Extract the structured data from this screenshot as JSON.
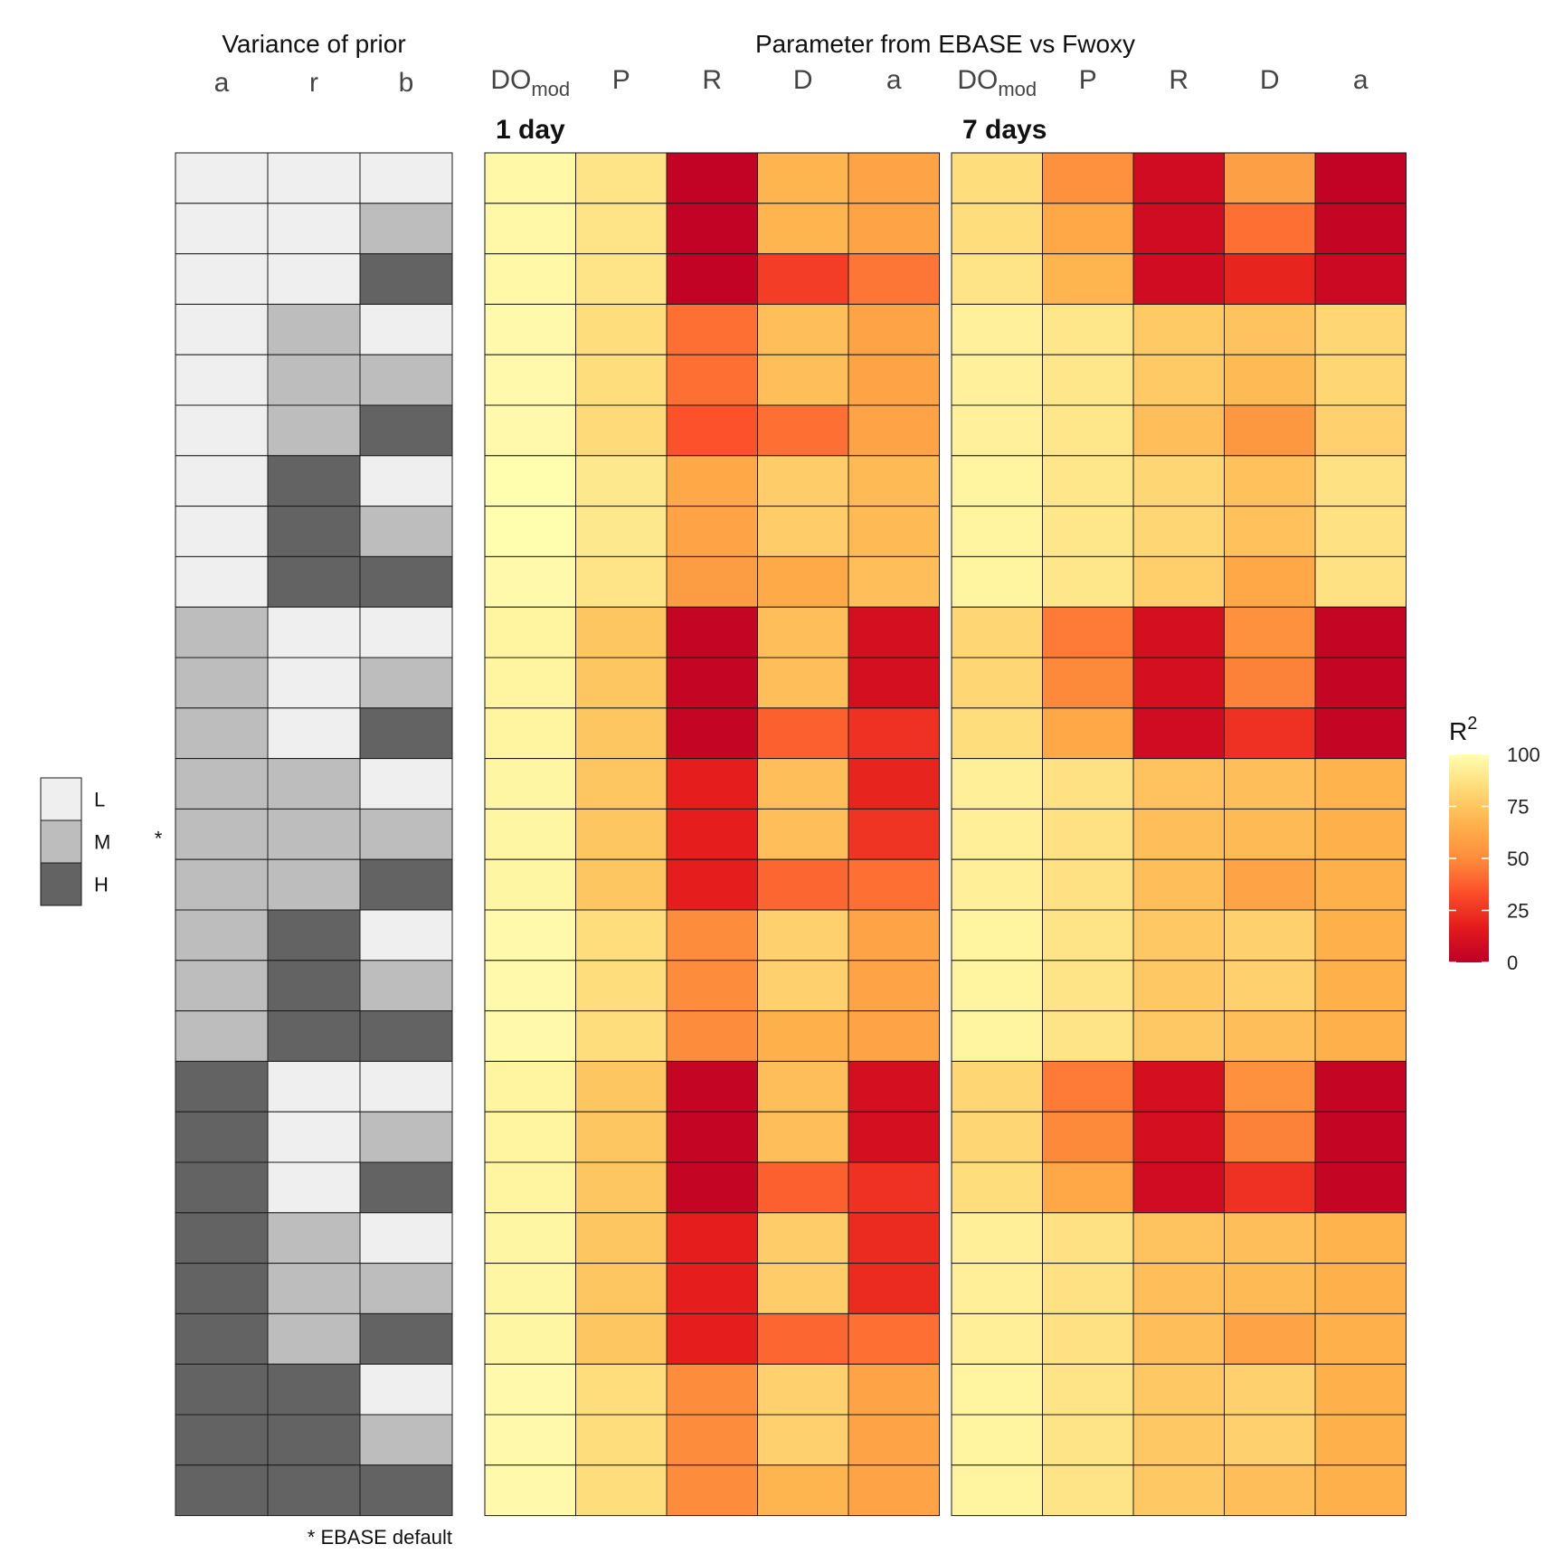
{
  "chart_data": {
    "type": "heatmap",
    "titles": {
      "prior_group": "Variance of prior",
      "param_group": "Parameter from EBASE vs Fwoxy"
    },
    "prior_columns": [
      "a",
      "r",
      "b"
    ],
    "param_columns": [
      {
        "main": "DO",
        "sub": "mod"
      },
      {
        "main": "P",
        "sub": ""
      },
      {
        "main": "R",
        "sub": ""
      },
      {
        "main": "D",
        "sub": ""
      },
      {
        "main": "a",
        "sub": ""
      }
    ],
    "prior_levels": [
      {
        "key": "L",
        "label": "L",
        "color": "#efefef"
      },
      {
        "key": "M",
        "label": "M",
        "color": "#bdbdbd"
      },
      {
        "key": "H",
        "label": "H",
        "color": "#636363"
      }
    ],
    "default_marker": "*",
    "default_row_index": 13,
    "footnote": "* EBASE default",
    "prior_grid": [
      [
        "L",
        "L",
        "L"
      ],
      [
        "L",
        "L",
        "M"
      ],
      [
        "L",
        "L",
        "H"
      ],
      [
        "L",
        "M",
        "L"
      ],
      [
        "L",
        "M",
        "M"
      ],
      [
        "L",
        "M",
        "H"
      ],
      [
        "L",
        "H",
        "L"
      ],
      [
        "L",
        "H",
        "M"
      ],
      [
        "L",
        "H",
        "H"
      ],
      [
        "M",
        "L",
        "L"
      ],
      [
        "M",
        "L",
        "M"
      ],
      [
        "M",
        "L",
        "H"
      ],
      [
        "M",
        "M",
        "L"
      ],
      [
        "M",
        "M",
        "M"
      ],
      [
        "M",
        "M",
        "H"
      ],
      [
        "M",
        "H",
        "L"
      ],
      [
        "M",
        "H",
        "M"
      ],
      [
        "M",
        "H",
        "H"
      ],
      [
        "H",
        "L",
        "L"
      ],
      [
        "H",
        "L",
        "M"
      ],
      [
        "H",
        "L",
        "H"
      ],
      [
        "H",
        "M",
        "L"
      ],
      [
        "H",
        "M",
        "M"
      ],
      [
        "H",
        "M",
        "H"
      ],
      [
        "H",
        "H",
        "L"
      ],
      [
        "H",
        "H",
        "M"
      ],
      [
        "H",
        "H",
        "H"
      ]
    ],
    "panels": [
      {
        "title": "1 day",
        "values": [
          [
            97,
            88,
            2,
            68,
            60
          ],
          [
            97,
            88,
            2,
            68,
            60
          ],
          [
            97,
            88,
            2,
            28,
            44
          ],
          [
            98,
            85,
            42,
            72,
            60
          ],
          [
            98,
            85,
            42,
            72,
            60
          ],
          [
            98,
            84,
            34,
            42,
            60
          ],
          [
            99,
            90,
            62,
            78,
            70
          ],
          [
            99,
            90,
            60,
            78,
            70
          ],
          [
            98,
            88,
            57,
            63,
            72
          ],
          [
            95,
            75,
            3,
            72,
            10
          ],
          [
            95,
            75,
            3,
            72,
            10
          ],
          [
            95,
            75,
            3,
            38,
            24
          ],
          [
            96,
            75,
            18,
            72,
            20
          ],
          [
            96,
            75,
            18,
            72,
            25
          ],
          [
            96,
            75,
            18,
            40,
            42
          ],
          [
            98,
            85,
            50,
            80,
            60
          ],
          [
            98,
            85,
            50,
            80,
            60
          ],
          [
            98,
            85,
            50,
            66,
            60
          ],
          [
            95,
            75,
            3,
            72,
            10
          ],
          [
            95,
            75,
            3,
            72,
            10
          ],
          [
            95,
            75,
            3,
            38,
            24
          ],
          [
            96,
            75,
            18,
            78,
            22
          ],
          [
            96,
            75,
            18,
            78,
            22
          ],
          [
            96,
            75,
            18,
            40,
            42
          ],
          [
            98,
            85,
            50,
            80,
            60
          ],
          [
            98,
            85,
            50,
            80,
            60
          ],
          [
            98,
            85,
            50,
            68,
            60
          ]
        ]
      },
      {
        "title": "7 days",
        "values": [
          [
            85,
            52,
            8,
            58,
            2
          ],
          [
            85,
            62,
            8,
            42,
            3
          ],
          [
            88,
            68,
            8,
            20,
            6
          ],
          [
            94,
            89,
            77,
            74,
            82
          ],
          [
            94,
            89,
            77,
            70,
            82
          ],
          [
            94,
            89,
            72,
            55,
            80
          ],
          [
            95,
            89,
            82,
            73,
            87
          ],
          [
            95,
            89,
            82,
            73,
            87
          ],
          [
            95,
            89,
            79,
            62,
            87
          ],
          [
            82,
            45,
            10,
            52,
            3
          ],
          [
            82,
            49,
            10,
            47,
            3
          ],
          [
            85,
            62,
            8,
            24,
            3
          ],
          [
            93,
            87,
            74,
            72,
            67
          ],
          [
            93,
            87,
            72,
            70,
            66
          ],
          [
            93,
            87,
            72,
            60,
            66
          ],
          [
            95,
            88,
            76,
            80,
            66
          ],
          [
            95,
            88,
            76,
            80,
            66
          ],
          [
            95,
            88,
            76,
            72,
            66
          ],
          [
            82,
            45,
            10,
            52,
            3
          ],
          [
            82,
            49,
            10,
            47,
            3
          ],
          [
            85,
            62,
            8,
            24,
            3
          ],
          [
            93,
            87,
            74,
            72,
            67
          ],
          [
            93,
            87,
            72,
            70,
            66
          ],
          [
            93,
            87,
            72,
            60,
            66
          ],
          [
            95,
            88,
            76,
            80,
            66
          ],
          [
            95,
            88,
            76,
            80,
            66
          ],
          [
            95,
            88,
            76,
            72,
            66
          ]
        ]
      }
    ],
    "colorbar": {
      "title_main": "R",
      "title_sup": "2",
      "min": 0,
      "max": 100,
      "ticks": [
        0,
        25,
        50,
        75,
        100
      ],
      "tick_labels": [
        "0",
        "25",
        "50",
        "75",
        "100"
      ],
      "palette": [
        "#bd0026",
        "#e31a1c",
        "#fc4e2a",
        "#fd8d3c",
        "#feb24c",
        "#fed976",
        "#ffffb2"
      ]
    }
  }
}
